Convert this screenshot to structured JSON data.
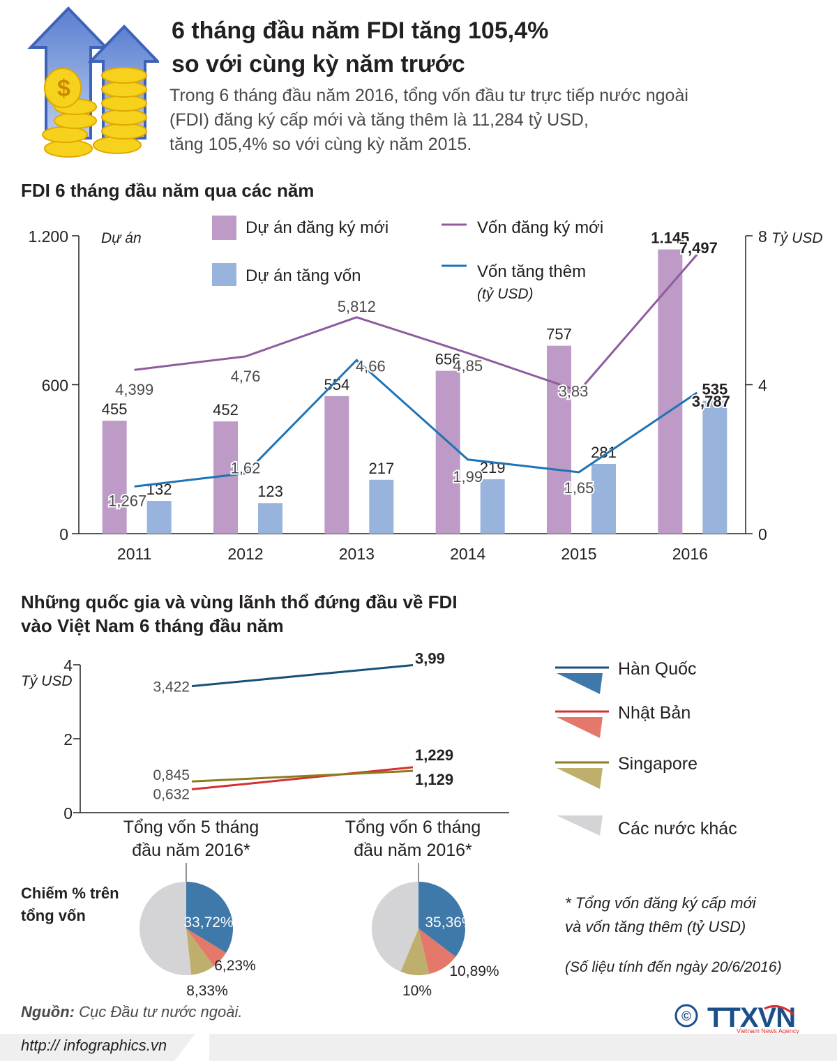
{
  "header": {
    "title_line1": "6 tháng đầu năm FDI tăng 105,4%",
    "title_line2": "so với cùng kỳ năm trước",
    "subtitle_line1": "Trong 6 tháng đầu năm 2016, tổng vốn đầu tư trực tiếp nước ngoài",
    "subtitle_line2": "(FDI) đăng ký cấp mới và tăng thêm là 11,284 tỷ USD,",
    "subtitle_line3": "tăng 105,4%  so với cùng kỳ năm 2015."
  },
  "section1": {
    "heading": "FDI 6 tháng đầu năm qua các năm"
  },
  "section2": {
    "heading_line1": "Những quốc gia và vùng lãnh thổ đứng đầu về FDI",
    "heading_line2": "vào Việt Nam 6 tháng đầu năm"
  },
  "share_label": {
    "line1": "Chiếm % trên",
    "line2": "tổng vốn"
  },
  "note": {
    "line1": "* Tổng vốn đăng ký cấp mới",
    "line2": "và vốn tăng thêm (tỷ USD)",
    "date": "(Số liệu tính đến ngày 20/6/2016)"
  },
  "footer": {
    "source_label": "Nguồn:",
    "source_text": " Cục Đầu tư nước ngoài.",
    "url": "http:// infographics.vn",
    "copyright": "©",
    "logo_text": "TTXVN",
    "logo_sub": "Vietnam News Agency"
  },
  "colors": {
    "purple_bar": "#bd9bc6",
    "blue_bar": "#98b4dc",
    "purple_line": "#8e5c9e",
    "blue_line": "#1f73b5",
    "korea": "#185078",
    "korea_slice": "#3f79a9",
    "japan": "#d62f2f",
    "japan_slice": "#e4786a",
    "singapore": "#8c7b1f",
    "singapore_slice": "#bfaf6c",
    "others": "#d4d4d6"
  },
  "chart_data": [
    {
      "type": "bar+line",
      "categories": [
        "2011",
        "2012",
        "2013",
        "2014",
        "2015",
        "2016"
      ],
      "left_axis": {
        "label": "Dự án",
        "ticks": [
          "1.200",
          "600",
          "0"
        ],
        "ylim": [
          0,
          1200
        ]
      },
      "right_axis": {
        "label": "Tỷ USD",
        "ticks": [
          "8",
          "4",
          "0"
        ],
        "ylim": [
          0,
          8
        ]
      },
      "series": [
        {
          "name": "Dự án đăng ký mới",
          "kind": "bar",
          "axis": "left",
          "values": [
            455,
            452,
            554,
            656,
            757,
            1145
          ],
          "labels": [
            "455",
            "452",
            "554",
            "656",
            "757",
            "1.145"
          ]
        },
        {
          "name": "Dự án tăng vốn",
          "kind": "bar",
          "axis": "left",
          "values": [
            132,
            123,
            217,
            219,
            281,
            535
          ],
          "labels": [
            "132",
            "123",
            "217",
            "219",
            "281",
            "535"
          ]
        },
        {
          "name": "Vốn đăng ký mới",
          "kind": "line",
          "axis": "right",
          "values": [
            4.399,
            4.76,
            5.812,
            4.85,
            3.83,
            7.497
          ],
          "labels": [
            "4,399",
            "4,76",
            "5,812",
            "4,85",
            "3,83",
            "7,497"
          ]
        },
        {
          "name": "Vốn tăng thêm",
          "kind": "line",
          "axis": "right",
          "values": [
            1.267,
            1.62,
            4.66,
            1.99,
            1.65,
            3.787
          ],
          "labels": [
            "1,267",
            "1,62",
            "4,66",
            "1,99",
            "1,65",
            "3,787"
          ]
        }
      ],
      "legend_unit": "(tỷ USD)"
    },
    {
      "type": "line",
      "categories": [
        "Tổng vốn 5 tháng|đầu năm 2016*",
        "Tổng vốn 6 tháng|đầu năm 2016*"
      ],
      "y_axis": {
        "label": "Tỷ USD",
        "ticks": [
          "4",
          "2",
          "0"
        ],
        "ylim": [
          0,
          4
        ]
      },
      "series": [
        {
          "name": "Hàn Quốc",
          "values": [
            3.422,
            3.99
          ],
          "labels": [
            "3,422",
            "3,99"
          ]
        },
        {
          "name": "Nhật Bản",
          "values": [
            0.632,
            1.229
          ],
          "labels": [
            "0,632",
            "1,229"
          ]
        },
        {
          "name": "Singapore",
          "values": [
            0.845,
            1.129
          ],
          "labels": [
            "0,845",
            "1,129"
          ]
        }
      ],
      "legend_extra": "Các nước khác"
    },
    {
      "type": "pie",
      "title": "Tổng vốn 5 tháng đầu năm 2016*",
      "slices": [
        {
          "name": "Hàn Quốc",
          "value": 33.72,
          "label": "33,72%"
        },
        {
          "name": "Nhật Bản",
          "value": 6.23,
          "label": "6,23%"
        },
        {
          "name": "Singapore",
          "value": 8.33,
          "label": "8,33%"
        },
        {
          "name": "Các nước khác",
          "value": 51.72
        }
      ]
    },
    {
      "type": "pie",
      "title": "Tổng vốn 6 tháng đầu năm 2016*",
      "slices": [
        {
          "name": "Hàn Quốc",
          "value": 35.36,
          "label": "35,36%"
        },
        {
          "name": "Nhật Bản",
          "value": 10.89,
          "label": "10,89%"
        },
        {
          "name": "Singapore",
          "value": 10,
          "label": "10%"
        },
        {
          "name": "Các nước khác",
          "value": 43.75
        }
      ]
    }
  ]
}
